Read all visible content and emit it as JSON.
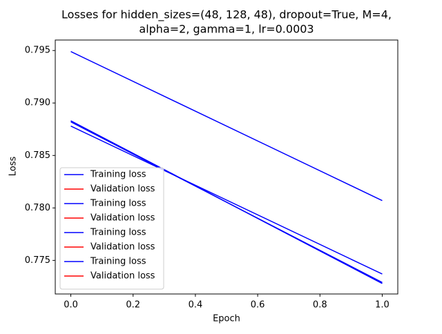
{
  "chart_data": {
    "type": "line",
    "title": [
      "Losses for hidden_sizes=(48, 128, 48), dropout=True, M=4,",
      "alpha=2, gamma=1, lr=0.0003"
    ],
    "xlabel": "Epoch",
    "ylabel": "Loss",
    "x": [
      0,
      1
    ],
    "series": [
      {
        "name": "Training loss",
        "color": "#0000ff",
        "values": [
          0.7949,
          0.7807
        ]
      },
      {
        "name": "Validation loss",
        "color": "#ff0000",
        "values": [
          null,
          null
        ]
      },
      {
        "name": "Training loss",
        "color": "#0000ff",
        "values": [
          0.7883,
          0.7728
        ]
      },
      {
        "name": "Validation loss",
        "color": "#ff0000",
        "values": [
          null,
          null
        ]
      },
      {
        "name": "Training loss",
        "color": "#0000ff",
        "values": [
          0.7882,
          0.7729
        ]
      },
      {
        "name": "Validation loss",
        "color": "#ff0000",
        "values": [
          null,
          null
        ]
      },
      {
        "name": "Training loss",
        "color": "#0000ff",
        "values": [
          0.7878,
          0.7737
        ]
      },
      {
        "name": "Validation loss",
        "color": "#ff0000",
        "values": [
          null,
          null
        ]
      }
    ],
    "xlim": [
      -0.05,
      1.05
    ],
    "xticks": [
      {
        "value": 0,
        "label": "0.0"
      },
      0.2,
      0.4,
      0.6,
      0.8,
      {
        "value": 1,
        "label": "1.0"
      }
    ],
    "ylim": [
      0.7718,
      0.796
    ],
    "yticks": [
      0.775,
      {
        "value": 0.78,
        "label": "0.780"
      },
      0.785,
      {
        "value": 0.79,
        "label": "0.790"
      },
      0.795
    ],
    "legend": "lower left"
  }
}
